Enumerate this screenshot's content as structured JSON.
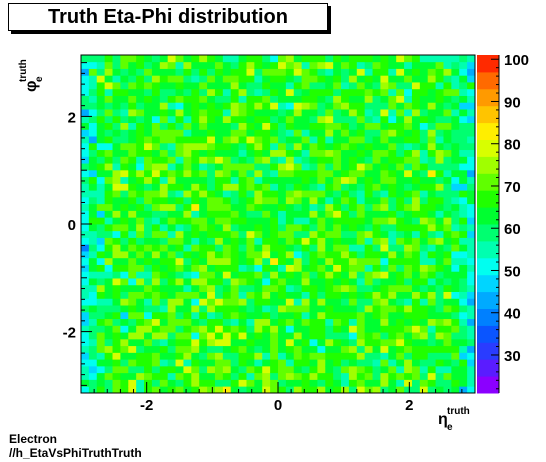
{
  "title": "Truth Eta-Phi distribution",
  "footer": {
    "line1": "Electron",
    "line2": "//h_EtaVsPhiTruthTruth"
  },
  "chart_data": {
    "type": "heatmap",
    "xlabel": "η_e^truth",
    "ylabel": "φ_e^truth",
    "x_label_symbol": "η",
    "y_label_symbol": "φ",
    "label_subscript": "e",
    "label_superscript": "truth",
    "xlim": [
      -3.0,
      3.0
    ],
    "ylim": [
      -3.1416,
      3.1416
    ],
    "x_ticks": [
      -2,
      0,
      2
    ],
    "y_ticks": [
      -2,
      0,
      2
    ],
    "z_range": [
      21,
      101
    ],
    "z_ticks": [
      30,
      40,
      50,
      60,
      70,
      80,
      90,
      100
    ],
    "n_bins_x": 50,
    "n_bins_y": 50,
    "palette": [
      "#8b00ff",
      "#5a1cff",
      "#2a3cff",
      "#0a55ff",
      "#0080ff",
      "#00aaff",
      "#00d5ff",
      "#00fff0",
      "#00ffb0",
      "#00ff70",
      "#00ff30",
      "#20ff00",
      "#60ff00",
      "#a0ff00",
      "#d8ff00",
      "#ffee00",
      "#ffc400",
      "#ff9a00",
      "#ff6a00",
      "#ff2a00"
    ],
    "grid": false,
    "values_note": "",
    "values": []
  }
}
